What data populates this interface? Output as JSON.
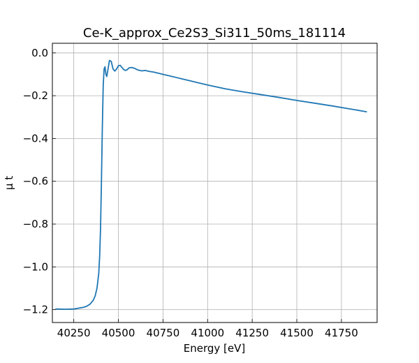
{
  "chart_data": {
    "type": "line",
    "title": "Ce-K_approx_Ce2S3_Si311_50ms_181114",
    "xlabel": "Energy [eV]",
    "ylabel": "μ t",
    "xlim": [
      40130,
      41950
    ],
    "ylim": [
      -1.26,
      0.045
    ],
    "grid": true,
    "x_ticks": [
      40250,
      40500,
      40750,
      41000,
      41250,
      41500,
      41750
    ],
    "x_tick_labels": [
      "40250",
      "40500",
      "40750",
      "41000",
      "41250",
      "41500",
      "41750"
    ],
    "y_ticks": [
      0.0,
      -0.2,
      -0.4,
      -0.6,
      -0.8,
      -1.0,
      -1.2
    ],
    "y_tick_labels": [
      "0.0",
      "−0.2",
      "−0.4",
      "−0.6",
      "−0.8",
      "−1.0",
      "−1.2"
    ],
    "series": [
      {
        "color": "#1f77b4",
        "x": [
          40150,
          40200,
          40250,
          40300,
          40320,
          40340,
          40360,
          40370,
          40380,
          40390,
          40395,
          40400,
          40405,
          40410,
          40415,
          40420,
          40425,
          40430,
          40435,
          40440,
          40445,
          40450,
          40460,
          40470,
          40480,
          40490,
          40500,
          40510,
          40520,
          40530,
          40540,
          40550,
          40560,
          40575,
          40590,
          40610,
          40630,
          40650,
          40670,
          40700,
          40750,
          40800,
          40850,
          40900,
          40950,
          41000,
          41100,
          41200,
          41300,
          41400,
          41500,
          41600,
          41700,
          41800,
          41890
        ],
        "y": [
          -1.197,
          -1.198,
          -1.197,
          -1.19,
          -1.185,
          -1.175,
          -1.155,
          -1.135,
          -1.1,
          -1.03,
          -0.95,
          -0.82,
          -0.6,
          -0.35,
          -0.15,
          -0.075,
          -0.065,
          -0.1,
          -0.11,
          -0.085,
          -0.06,
          -0.035,
          -0.04,
          -0.075,
          -0.085,
          -0.075,
          -0.06,
          -0.058,
          -0.068,
          -0.078,
          -0.082,
          -0.078,
          -0.07,
          -0.068,
          -0.072,
          -0.08,
          -0.084,
          -0.082,
          -0.086,
          -0.09,
          -0.1,
          -0.11,
          -0.12,
          -0.13,
          -0.14,
          -0.15,
          -0.168,
          -0.182,
          -0.195,
          -0.208,
          -0.222,
          -0.235,
          -0.248,
          -0.262,
          -0.275
        ]
      }
    ]
  }
}
